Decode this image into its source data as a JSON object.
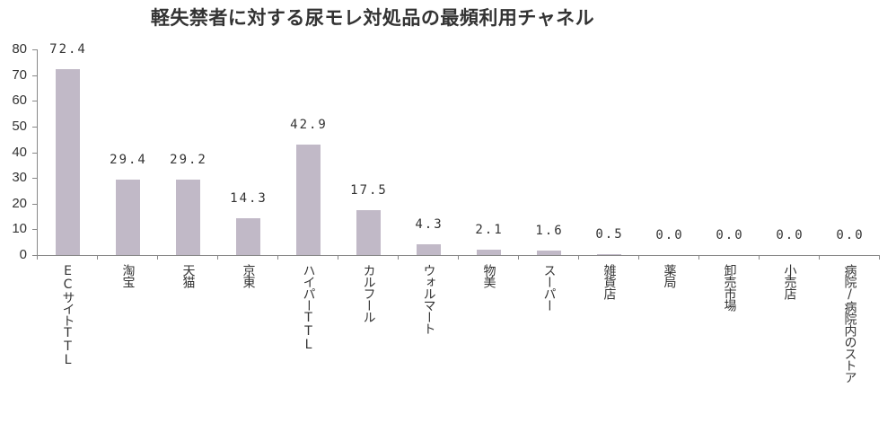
{
  "title": "軽失禁者に対する尿モレ対処品の最頻利用チャネル",
  "chart_data": {
    "type": "bar",
    "title": "軽失禁者に対する尿モレ対処品の最頻利用チャネル",
    "xlabel": "",
    "ylabel": "",
    "ylim": [
      0,
      80
    ],
    "yticks": [
      0,
      10,
      20,
      30,
      40,
      50,
      60,
      70,
      80
    ],
    "grid": false,
    "legend": null,
    "bar_color": "#c1b9c7",
    "categories": [
      "ECサイトTTL",
      "淘宝",
      "天猫",
      "京東",
      "ハイパーTTL",
      "カルフール",
      "ウォルマート",
      "物美",
      "スーパー",
      "雑貨店",
      "薬局",
      "卸売市場",
      "小売店",
      "病院/病院内のストア"
    ],
    "values": [
      72.4,
      29.4,
      29.2,
      14.3,
      42.9,
      17.5,
      4.3,
      2.1,
      1.6,
      0.5,
      0.0,
      0.0,
      0.0,
      0.0
    ],
    "value_labels": [
      "72.4",
      "29.4",
      "29.2",
      "14.3",
      "42.9",
      "17.5",
      "4.3",
      "2.1",
      "1.6",
      "0.5",
      "0.0",
      "0.0",
      "0.0",
      "0.0"
    ]
  }
}
